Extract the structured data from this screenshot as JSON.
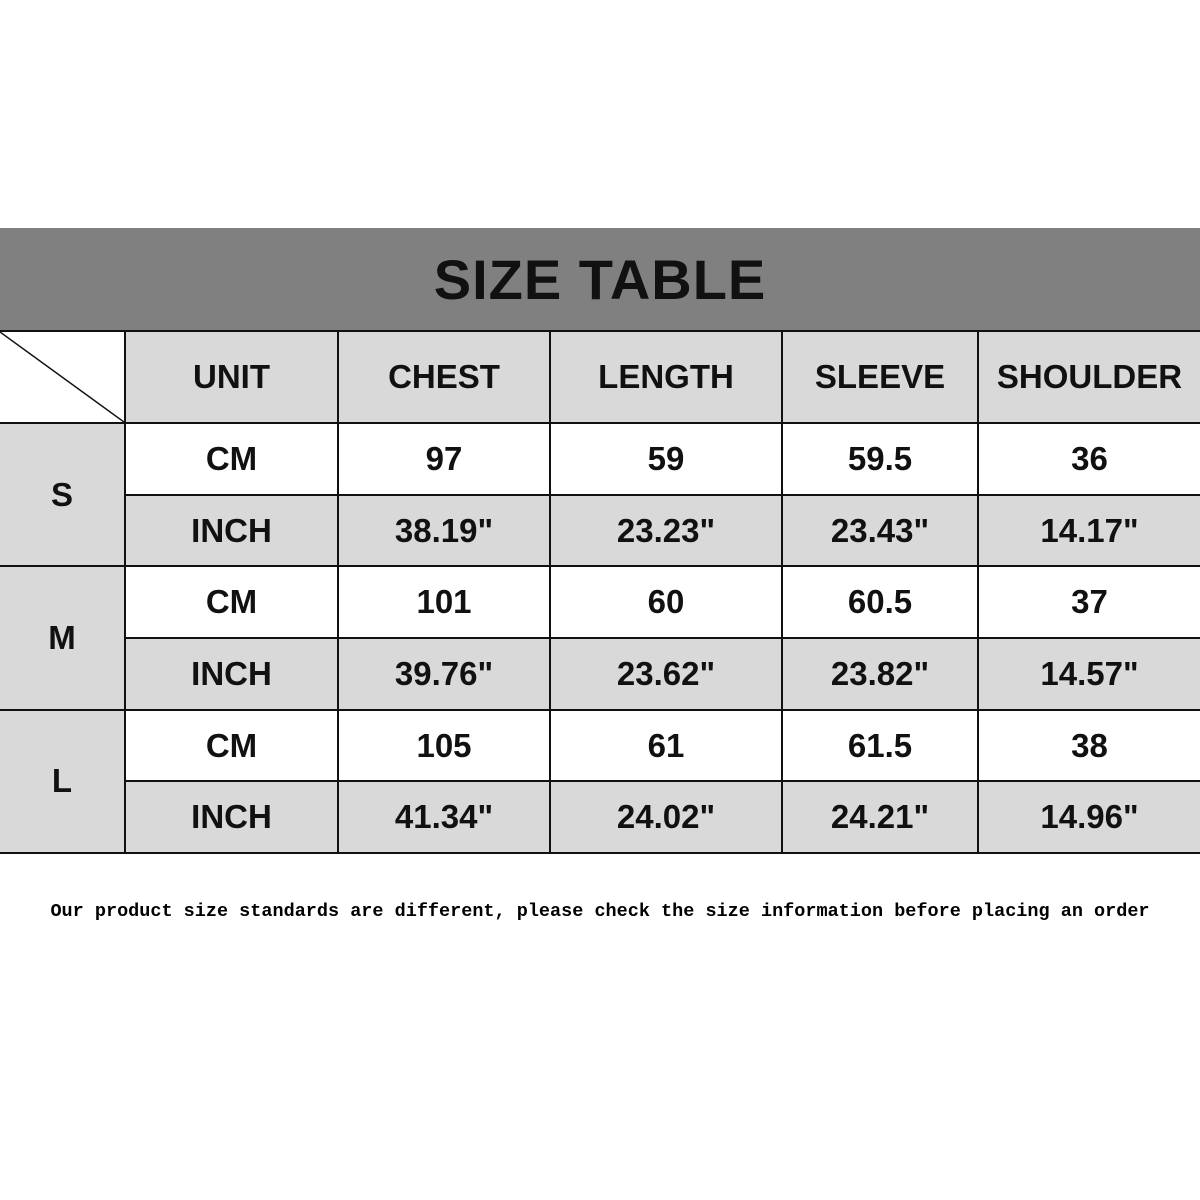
{
  "title": "SIZE TABLE",
  "colors": {
    "title_bar": "#808080",
    "shaded_cell": "#d9d9d9",
    "border": "#111111"
  },
  "columns": [
    "UNIT",
    "CHEST",
    "LENGTH",
    "SLEEVE",
    "SHOULDER"
  ],
  "sizes": [
    {
      "size": "S",
      "rows": [
        [
          "CM",
          "97",
          "59",
          "59.5",
          "36"
        ],
        [
          "INCH",
          "38.19\"",
          "23.23\"",
          "23.43\"",
          "14.17\""
        ]
      ]
    },
    {
      "size": "M",
      "rows": [
        [
          "CM",
          "101",
          "60",
          "60.5",
          "37"
        ],
        [
          "INCH",
          "39.76\"",
          "23.62\"",
          "23.82\"",
          "14.57\""
        ]
      ]
    },
    {
      "size": "L",
      "rows": [
        [
          "CM",
          "105",
          "61",
          "61.5",
          "38"
        ],
        [
          "INCH",
          "41.34\"",
          "24.02\"",
          "24.21\"",
          "14.96\""
        ]
      ]
    }
  ],
  "footer_note": "Our product size standards are different, please check the size information before placing an order"
}
